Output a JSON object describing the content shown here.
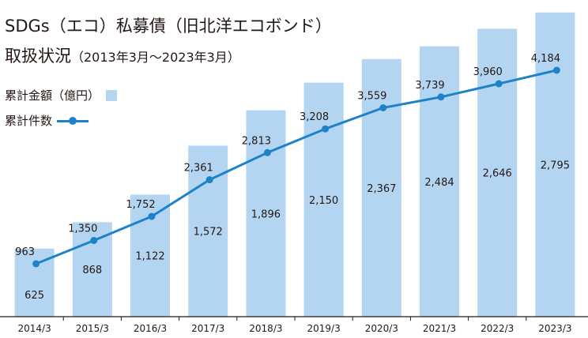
{
  "title": "SDGs（エコ）私募債（旧北洋エコボンド）",
  "subtitle": "取扱状況",
  "period": "（2013年3月～2023年3月）",
  "colors": {
    "bar": "#b4d5f2",
    "line": "#1e82c8",
    "axis": "#231815"
  },
  "chart_data": {
    "type": "bar",
    "title": "SDGs（エコ）私募債（旧北洋エコボンド）取扱状況（2013年3月～2023年3月）",
    "categories": [
      "2014/3",
      "2015/3",
      "2016/3",
      "2017/3",
      "2018/3",
      "2019/3",
      "2020/3",
      "2021/3",
      "2022/3",
      "2023/3"
    ],
    "series": [
      {
        "name": "累計金額（億円）",
        "type": "bar",
        "values": [
          625,
          868,
          1122,
          1572,
          1896,
          2150,
          2367,
          2484,
          2646,
          2795
        ]
      },
      {
        "name": "累計件数",
        "type": "line",
        "values": [
          963,
          1350,
          1752,
          2361,
          2813,
          3208,
          3559,
          3739,
          3960,
          4184
        ]
      }
    ],
    "legend_position": "top-left",
    "grid": false
  }
}
